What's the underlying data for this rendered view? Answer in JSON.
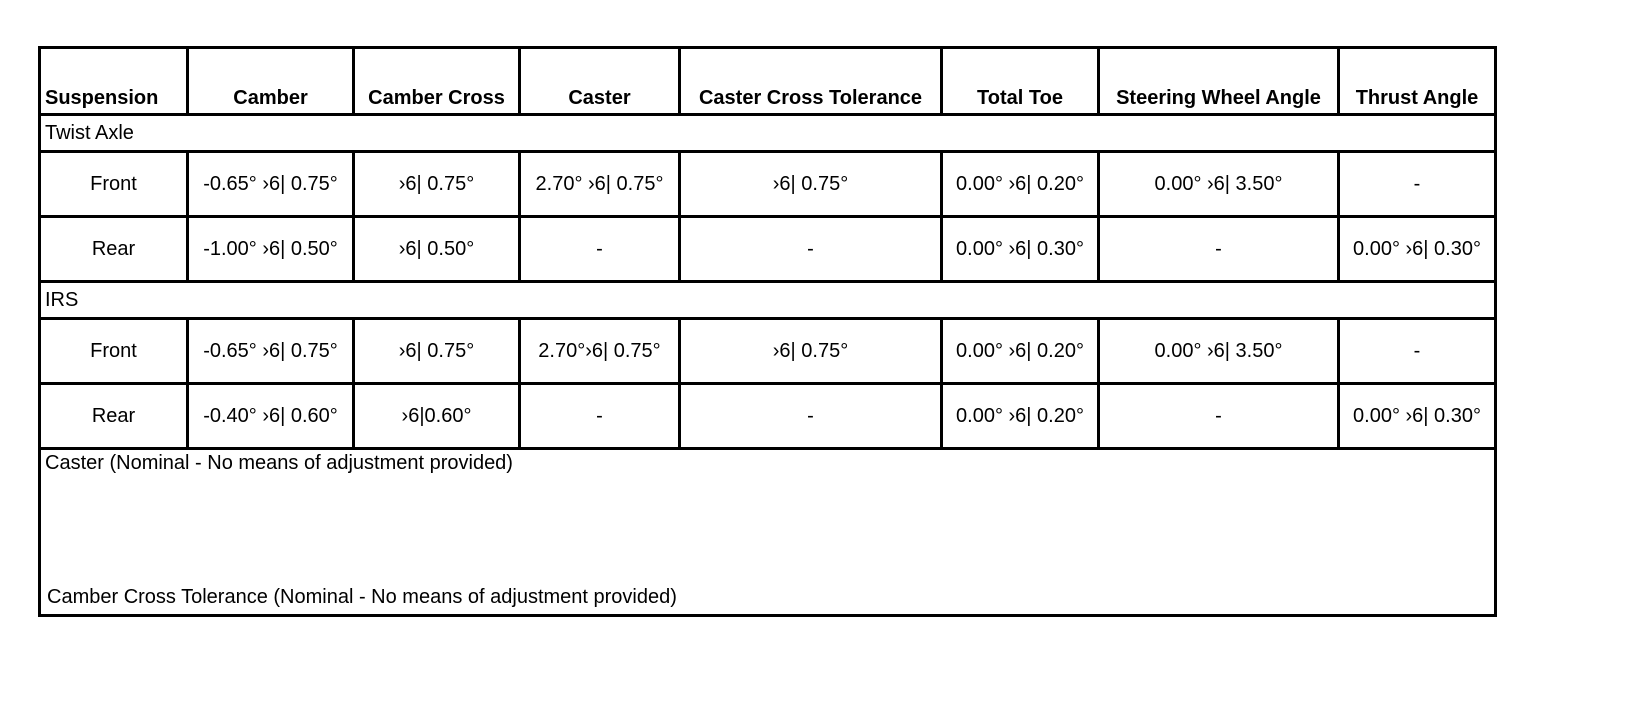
{
  "headers": [
    "Suspension",
    "Camber",
    "Camber Cross",
    "Caster",
    "Caster Cross Tolerance",
    "Total Toe",
    "Steering Wheel Angle",
    "Thrust Angle"
  ],
  "groups": [
    {
      "name": "Twist Axle",
      "rows": [
        [
          "Front",
          "-0.65° ›6| 0.75°",
          "›6| 0.75°",
          "2.70° ›6| 0.75°",
          "›6| 0.75°",
          "0.00° ›6| 0.20°",
          "0.00° ›6| 3.50°",
          "-"
        ],
        [
          "Rear",
          "-1.00° ›6| 0.50°",
          "›6| 0.50°",
          "-",
          "-",
          "0.00° ›6| 0.30°",
          "-",
          "0.00° ›6| 0.30°"
        ]
      ]
    },
    {
      "name": "IRS",
      "rows": [
        [
          "Front",
          "-0.65° ›6| 0.75°",
          "›6| 0.75°",
          "2.70°›6| 0.75°",
          "›6| 0.75°",
          "0.00° ›6| 0.20°",
          "0.00° ›6| 3.50°",
          "-"
        ],
        [
          "Rear",
          "-0.40° ›6| 0.60°",
          "›6|0.60°",
          "-",
          "-",
          "0.00° ›6| 0.20°",
          "-",
          "0.00° ›6| 0.30°"
        ]
      ]
    }
  ],
  "notes": [
    "Caster (Nominal - No means of adjustment provided)",
    "Camber Cross Tolerance (Nominal - No means of adjustment provided)"
  ]
}
